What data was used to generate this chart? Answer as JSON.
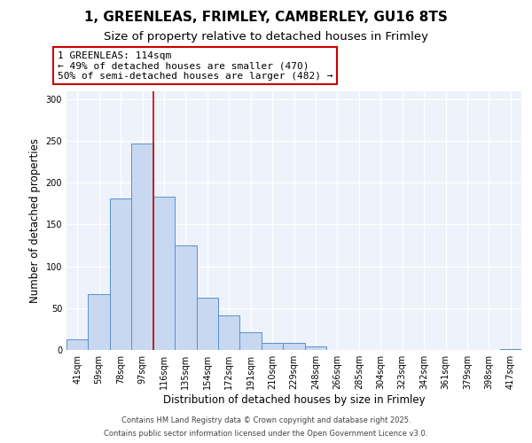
{
  "title": "1, GREENLEAS, FRIMLEY, CAMBERLEY, GU16 8TS",
  "subtitle": "Size of property relative to detached houses in Frimley",
  "xlabel": "Distribution of detached houses by size in Frimley",
  "ylabel": "Number of detached properties",
  "bar_labels": [
    "41sqm",
    "59sqm",
    "78sqm",
    "97sqm",
    "116sqm",
    "135sqm",
    "154sqm",
    "172sqm",
    "191sqm",
    "210sqm",
    "229sqm",
    "248sqm",
    "266sqm",
    "285sqm",
    "304sqm",
    "323sqm",
    "342sqm",
    "361sqm",
    "379sqm",
    "398sqm",
    "417sqm"
  ],
  "bar_values": [
    13,
    67,
    181,
    247,
    183,
    125,
    63,
    41,
    21,
    9,
    9,
    4,
    0,
    0,
    0,
    0,
    0,
    0,
    0,
    0,
    1
  ],
  "bar_color": "#c8d8f0",
  "bar_edge_color": "#5b8fcc",
  "vline_color": "#cc0000",
  "annotation_text": "1 GREENLEAS: 114sqm\n← 49% of detached houses are smaller (470)\n50% of semi-detached houses are larger (482) →",
  "annotation_box_color": "#ffffff",
  "annotation_box_edge_color": "#cc0000",
  "ylim": [
    0,
    310
  ],
  "yticks": [
    0,
    50,
    100,
    150,
    200,
    250,
    300
  ],
  "background_color": "#eef2fa",
  "grid_color": "#ffffff",
  "fig_background": "#ffffff",
  "footer_line1": "Contains HM Land Registry data © Crown copyright and database right 2025.",
  "footer_line2": "Contains public sector information licensed under the Open Government Licence v3.0.",
  "title_fontsize": 11,
  "subtitle_fontsize": 9.5,
  "tick_fontsize": 7,
  "ylabel_fontsize": 8.5,
  "xlabel_fontsize": 8.5,
  "annotation_fontsize": 8,
  "footer_fontsize": 6
}
